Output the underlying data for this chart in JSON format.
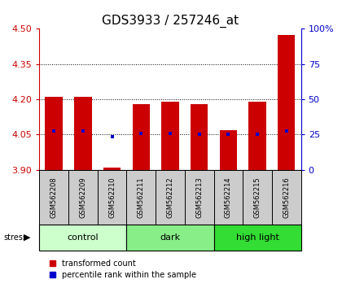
{
  "title": "GDS3933 / 257246_at",
  "samples": [
    "GSM562208",
    "GSM562209",
    "GSM562210",
    "GSM562211",
    "GSM562212",
    "GSM562213",
    "GSM562214",
    "GSM562215",
    "GSM562216"
  ],
  "bar_tops": [
    4.21,
    4.21,
    3.91,
    4.18,
    4.19,
    4.18,
    4.07,
    4.19,
    4.475
  ],
  "bar_bottoms": [
    3.9,
    3.9,
    3.9,
    3.9,
    3.9,
    3.9,
    3.9,
    3.9,
    3.9
  ],
  "blue_dots": [
    4.065,
    4.065,
    4.04,
    4.055,
    4.055,
    4.053,
    4.051,
    4.053,
    4.067
  ],
  "ylim": [
    3.9,
    4.5
  ],
  "yticks": [
    3.9,
    4.05,
    4.2,
    4.35,
    4.5
  ],
  "right_yticks_pct": [
    0,
    25,
    50,
    75,
    100
  ],
  "groups": [
    {
      "label": "control",
      "start": 0,
      "end": 3,
      "color": "#ccffcc"
    },
    {
      "label": "dark",
      "start": 3,
      "end": 6,
      "color": "#88ee88"
    },
    {
      "label": "high light",
      "start": 6,
      "end": 9,
      "color": "#33dd33"
    }
  ],
  "bar_color": "#cc0000",
  "dot_color": "#0000cc",
  "label_bg_color": "#cccccc",
  "title_fontsize": 11,
  "tick_fontsize": 8,
  "label_fontsize": 6,
  "group_fontsize": 8
}
